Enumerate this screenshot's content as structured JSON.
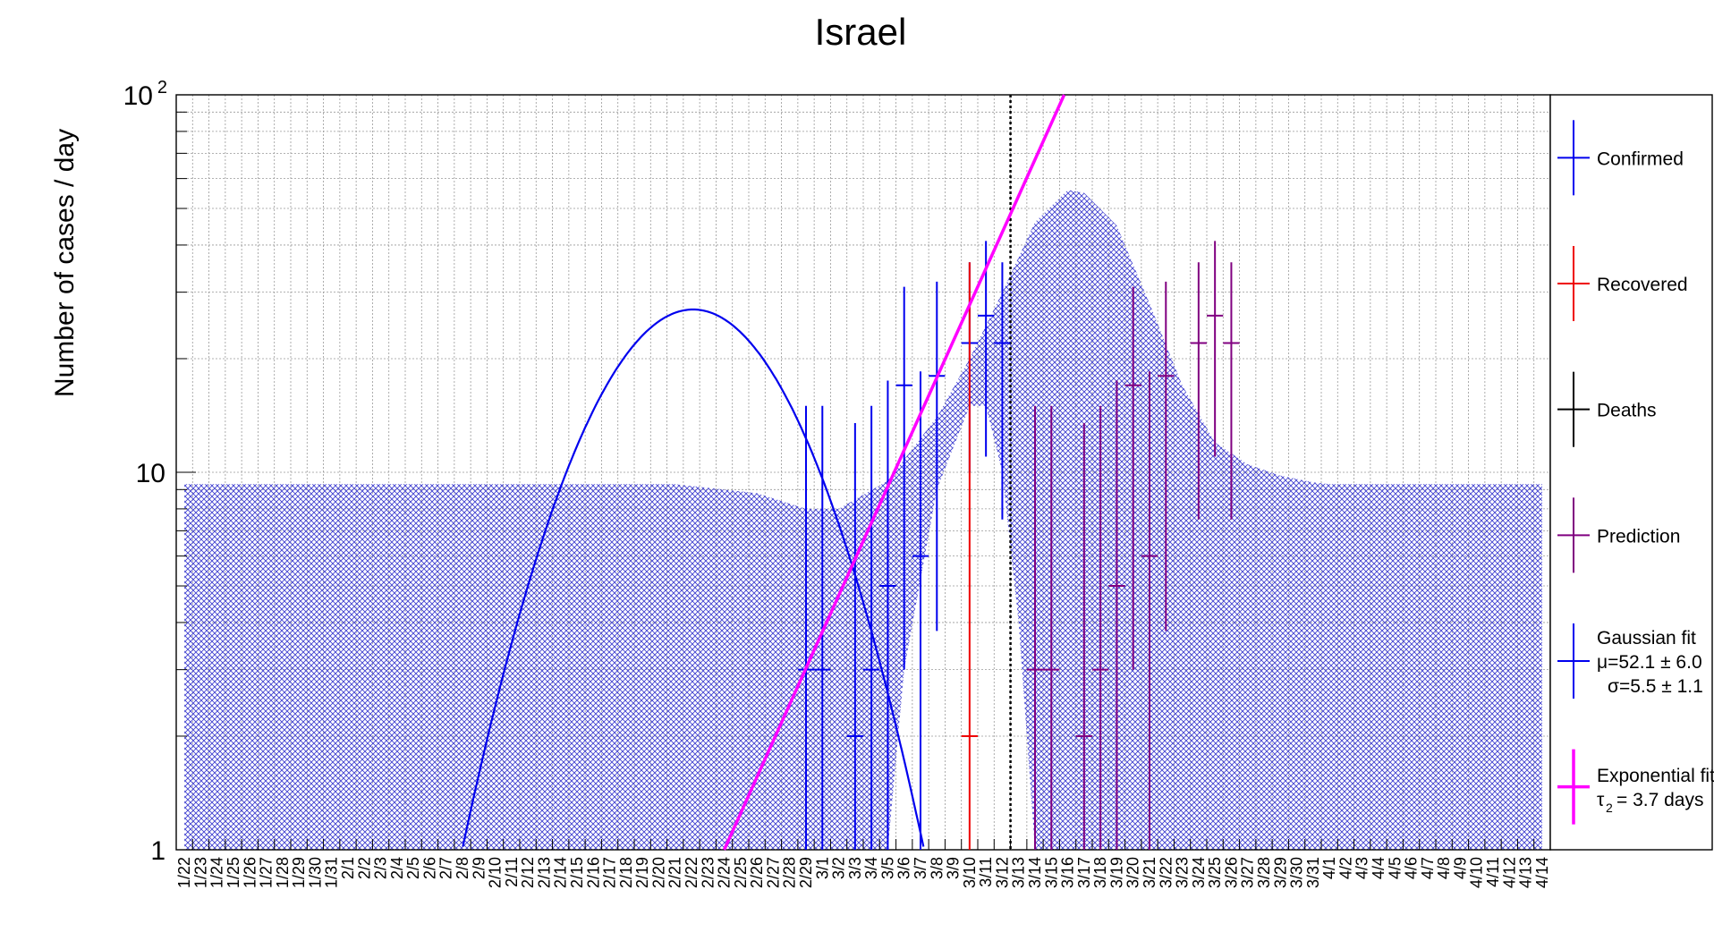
{
  "chart_data": {
    "type": "scatter",
    "title": "Israel",
    "ylabel": "Number of cases / day",
    "xlabel": "",
    "yscale": "log",
    "ylim": [
      1,
      100
    ],
    "y_ticks": [
      {
        "value": 1,
        "label": "1"
      },
      {
        "value": 10,
        "label": "10"
      },
      {
        "value": 100,
        "label": "10",
        "exp": "2"
      }
    ],
    "grid": true,
    "legend_position": "right",
    "categories": [
      "1/22",
      "1/23",
      "1/24",
      "1/25",
      "1/26",
      "1/27",
      "1/28",
      "1/29",
      "1/30",
      "1/31",
      "2/1",
      "2/2",
      "2/3",
      "2/4",
      "2/5",
      "2/6",
      "2/7",
      "2/8",
      "2/9",
      "2/10",
      "2/11",
      "2/12",
      "2/13",
      "2/14",
      "2/15",
      "2/16",
      "2/17",
      "2/18",
      "2/19",
      "2/20",
      "2/21",
      "2/22",
      "2/23",
      "2/24",
      "2/25",
      "2/26",
      "2/27",
      "2/28",
      "2/29",
      "3/1",
      "3/2",
      "3/3",
      "3/4",
      "3/5",
      "3/6",
      "3/7",
      "3/8",
      "3/9",
      "3/10",
      "3/11",
      "3/12",
      "3/13",
      "3/14",
      "3/15",
      "3/16",
      "3/17",
      "3/18",
      "3/19",
      "3/20",
      "3/21",
      "3/22",
      "3/23",
      "3/24",
      "3/25",
      "3/26",
      "3/27",
      "3/28",
      "3/29",
      "3/30",
      "3/31",
      "4/1",
      "4/2",
      "4/3",
      "4/4",
      "4/5",
      "4/6",
      "4/7",
      "4/8",
      "4/9",
      "4/10",
      "4/11",
      "4/12",
      "4/13",
      "4/14"
    ],
    "current_date_marker": "3/12",
    "series": [
      {
        "name": "Confirmed",
        "color": "#0000ee",
        "points": [
          {
            "x": "2/29",
            "y": 3,
            "lo": 1,
            "hi": 15
          },
          {
            "x": "3/1",
            "y": 3,
            "lo": 1,
            "hi": 15
          },
          {
            "x": "3/3",
            "y": 2,
            "lo": 1,
            "hi": 13.5
          },
          {
            "x": "3/4",
            "y": 3,
            "lo": 1,
            "hi": 15
          },
          {
            "x": "3/5",
            "y": 5,
            "lo": 1,
            "hi": 17.5
          },
          {
            "x": "3/6",
            "y": 17,
            "lo": 3,
            "hi": 31
          },
          {
            "x": "3/7",
            "y": 6,
            "lo": 1,
            "hi": 18.5
          },
          {
            "x": "3/8",
            "y": 18,
            "lo": 3.8,
            "hi": 32
          },
          {
            "x": "3/10",
            "y": 22,
            "lo": 10,
            "hi": 36
          },
          {
            "x": "3/11",
            "y": 26,
            "lo": 11,
            "hi": 41
          },
          {
            "x": "3/12",
            "y": 22,
            "lo": 7.5,
            "hi": 36
          }
        ]
      },
      {
        "name": "Recovered",
        "color": "#ee0000",
        "points": [
          {
            "x": "3/10",
            "y": 2,
            "lo": 1,
            "hi": 36
          }
        ]
      },
      {
        "name": "Deaths",
        "color": "#000000",
        "points": []
      },
      {
        "name": "Prediction",
        "color": "#800080",
        "points": [
          {
            "x": "3/14",
            "y": 3,
            "lo": 1,
            "hi": 15
          },
          {
            "x": "3/15",
            "y": 3,
            "lo": 1,
            "hi": 15
          },
          {
            "x": "3/17",
            "y": 2,
            "lo": 1,
            "hi": 13.5
          },
          {
            "x": "3/18",
            "y": 3,
            "lo": 1,
            "hi": 15
          },
          {
            "x": "3/19",
            "y": 5,
            "lo": 1,
            "hi": 17.5
          },
          {
            "x": "3/20",
            "y": 17,
            "lo": 3,
            "hi": 31
          },
          {
            "x": "3/21",
            "y": 6,
            "lo": 1,
            "hi": 18.5
          },
          {
            "x": "3/22",
            "y": 18,
            "lo": 3.8,
            "hi": 32
          },
          {
            "x": "3/24",
            "y": 22,
            "lo": 7.5,
            "hi": 36
          },
          {
            "x": "3/25",
            "y": 26,
            "lo": 11,
            "hi": 41
          },
          {
            "x": "3/26",
            "y": 22,
            "lo": 7.5,
            "hi": 36
          }
        ]
      }
    ],
    "gaussian_fit": {
      "name": "Gaussian fit",
      "color": "#0000ee",
      "mu_label": "μ=52.1 ± 6.0",
      "sigma_label": "σ=5.5 ± 1.1",
      "mu": 52.1,
      "sigma": 5.5,
      "peak": 27
    },
    "exponential_fit": {
      "name": "Exponential fit",
      "color": "#ff00ff",
      "tau_label": "τ",
      "tau_sub": "2",
      "tau_value": "= 3.7 days",
      "x_start": "2/24",
      "y_start": 1,
      "x_end": "3/16",
      "y_end": 100
    },
    "uncertainty_band": {
      "color": "#3333cc",
      "upper": [
        [
          0,
          9.3
        ],
        [
          30,
          9.3
        ],
        [
          35,
          8.8
        ],
        [
          38,
          8.0
        ],
        [
          40,
          8.0
        ],
        [
          43,
          9.5
        ],
        [
          46,
          14
        ],
        [
          48,
          20
        ],
        [
          50,
          30
        ],
        [
          52,
          46
        ],
        [
          54,
          56
        ],
        [
          55,
          55
        ],
        [
          57,
          45
        ],
        [
          59,
          28
        ],
        [
          61,
          17
        ],
        [
          63,
          12
        ],
        [
          65,
          10.5
        ],
        [
          67,
          9.8
        ],
        [
          69,
          9.4
        ],
        [
          70,
          9.3
        ],
        [
          83,
          9.3
        ]
      ],
      "lower": [
        [
          0,
          1
        ],
        [
          33,
          1
        ],
        [
          37,
          1
        ],
        [
          40,
          1
        ],
        [
          41,
          1
        ],
        [
          43,
          1
        ],
        [
          44,
          3
        ],
        [
          46,
          9
        ],
        [
          48,
          15
        ],
        [
          49,
          15
        ],
        [
          50,
          10
        ],
        [
          51,
          4
        ],
        [
          52,
          1
        ],
        [
          83,
          1
        ]
      ]
    }
  }
}
